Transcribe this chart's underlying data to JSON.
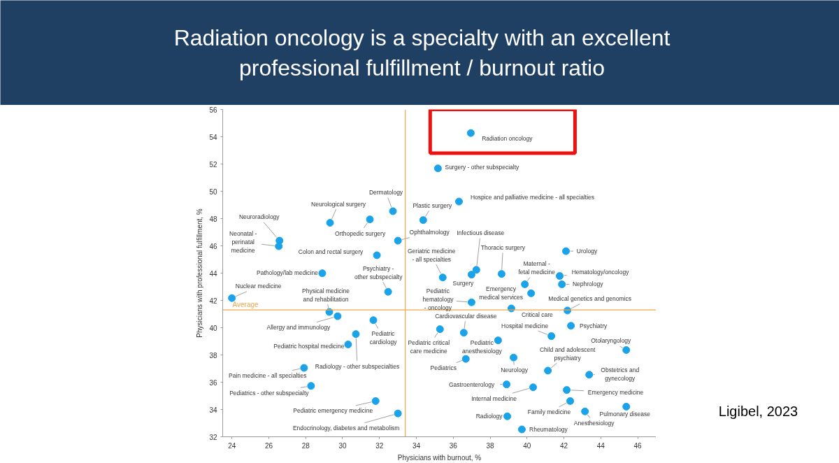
{
  "chart_data": {
    "type": "scatter",
    "title": "Radiation oncology is a specialty with an excellent professional fulfillment / burnout ratio",
    "xlabel": "Physicians with burnout, %",
    "ylabel": "Physicians with professional fulfillment, %",
    "xlim": [
      23.5,
      47
    ],
    "ylim": [
      32,
      56
    ],
    "xticks": [
      24,
      26,
      28,
      30,
      32,
      34,
      36,
      38,
      40,
      42,
      44,
      46
    ],
    "yticks": [
      32,
      34,
      36,
      38,
      40,
      42,
      44,
      46,
      48,
      50,
      52,
      54,
      56
    ],
    "grid": false,
    "marker": "circle",
    "series": [
      {
        "color": "#1aa3e8",
        "x": [
          36.95,
          35.17,
          32.73,
          36.31,
          34.37,
          29.32,
          31.48,
          26.58,
          26.54,
          33.0,
          31.86,
          37.25,
          42.11,
          35.43,
          36.99,
          38.62,
          28.9,
          41.77,
          39.88,
          41.89,
          24.0,
          32.47,
          40.22,
          36.99,
          42.19,
          39.15,
          29.28,
          29.73,
          36.57,
          31.67,
          42.38,
          41.32,
          35.28,
          30.72,
          38.43,
          30.3,
          45.38,
          36.68,
          39.27,
          27.91,
          41.13,
          43.37,
          38.89,
          40.33,
          42.15,
          28.29,
          42.34,
          45.38,
          43.14,
          31.79,
          33.0,
          38.93,
          39.72
        ],
        "values": [
          54.27,
          51.68,
          48.54,
          49.25,
          47.89,
          47.69,
          47.94,
          46.38,
          45.97,
          46.38,
          45.31,
          44.24,
          45.61,
          43.68,
          43.89,
          43.94,
          43.99,
          43.79,
          43.18,
          43.18,
          42.17,
          42.63,
          42.52,
          41.86,
          41.26,
          41.41,
          41.15,
          40.84,
          39.63,
          40.55,
          40.14,
          39.38,
          39.89,
          39.53,
          39.07,
          38.77,
          38.36,
          37.71,
          37.81,
          37.05,
          36.85,
          36.55,
          35.84,
          35.63,
          35.43,
          35.73,
          34.62,
          34.21,
          33.86,
          34.62,
          33.71,
          33.5,
          32.54
        ]
      }
    ],
    "ref_lines": [
      {
        "axis": "x",
        "value": 33.4,
        "color": "#f0a64a"
      },
      {
        "axis": "y",
        "value": 41.3,
        "label": "Average",
        "color": "#f0a64a"
      }
    ],
    "annotations": [
      {
        "text": "Radiation oncology",
        "x": 36.95,
        "y": 54.27
      },
      {
        "text": "Surgery - other subspecialty",
        "x": 35.17,
        "y": 51.68
      },
      {
        "text": "Dermatology",
        "x": 32.73,
        "y": 48.54
      },
      {
        "text": "Hospice and palliative medicine - all specialties",
        "x": 36.31,
        "y": 49.25
      },
      {
        "text": "Plastic surgery",
        "x": 34.37,
        "y": 47.89
      },
      {
        "text": "Neurological surgery",
        "x": 29.32,
        "y": 47.69
      },
      {
        "text": "Orthopedic surgery",
        "x": 31.48,
        "y": 47.94
      },
      {
        "text": "Neuroradiology",
        "x": 26.58,
        "y": 46.38
      },
      {
        "text": "Neonatal - perinatal medicine",
        "x": 26.54,
        "y": 45.97
      },
      {
        "text": "Ophthalmology",
        "x": 33.0,
        "y": 46.38
      },
      {
        "text": "Colon and rectal surgery",
        "x": 31.86,
        "y": 45.31
      },
      {
        "text": "Infectious disease",
        "x": 37.25,
        "y": 44.24
      },
      {
        "text": "Urology",
        "x": 42.11,
        "y": 45.61
      },
      {
        "text": "Geriatric medicine - all specialties",
        "x": 35.43,
        "y": 43.68
      },
      {
        "text": "Surgery",
        "x": 36.99,
        "y": 43.89
      },
      {
        "text": "Thoracic surgery",
        "x": 38.62,
        "y": 43.94
      },
      {
        "text": "Pathology/lab medicine",
        "x": 28.9,
        "y": 43.99
      },
      {
        "text": "Hematology/oncology",
        "x": 41.77,
        "y": 43.79
      },
      {
        "text": "Maternal - fetal medicine",
        "x": 39.88,
        "y": 43.18
      },
      {
        "text": "Nephrology",
        "x": 41.89,
        "y": 43.18
      },
      {
        "text": "Nuclear medicine",
        "x": 24.0,
        "y": 42.17
      },
      {
        "text": "Psychiatry - other subspecialty",
        "x": 32.47,
        "y": 42.63
      },
      {
        "text": "Emergency medical services",
        "x": 40.22,
        "y": 42.52
      },
      {
        "text": "Pediatric hematology - oncology",
        "x": 36.99,
        "y": 41.86
      },
      {
        "text": "Medical genetics and genomics",
        "x": 42.19,
        "y": 41.26
      },
      {
        "text": "Critical care",
        "x": 39.15,
        "y": 41.41
      },
      {
        "text": "Physical medicine and rehabilitation",
        "x": 29.28,
        "y": 41.15
      },
      {
        "text": "Allergy and immunology",
        "x": 29.73,
        "y": 40.84
      },
      {
        "text": "Cardiovascular disease",
        "x": 36.57,
        "y": 39.63
      },
      {
        "text": "Pediatric cardiology",
        "x": 31.67,
        "y": 40.55
      },
      {
        "text": "Psychiatry",
        "x": 42.38,
        "y": 40.14
      },
      {
        "text": "Hospital medicine",
        "x": 41.32,
        "y": 39.38
      },
      {
        "text": "Pediatric critical care medicine",
        "x": 35.28,
        "y": 39.89
      },
      {
        "text": "Radiology - other subspecialties",
        "x": 30.72,
        "y": 39.53
      },
      {
        "text": "Pediatric anesthesiology",
        "x": 38.43,
        "y": 39.07
      },
      {
        "text": "Pediatric hospital medicine",
        "x": 30.3,
        "y": 38.77
      },
      {
        "text": "Otolaryngology",
        "x": 45.38,
        "y": 38.36
      },
      {
        "text": "Pediatrics",
        "x": 36.68,
        "y": 37.71
      },
      {
        "text": "Neurology",
        "x": 39.27,
        "y": 37.81
      },
      {
        "text": "Pain medicine - all specialties",
        "x": 27.91,
        "y": 37.05
      },
      {
        "text": "Child and adolescent psychiatry",
        "x": 41.13,
        "y": 36.85
      },
      {
        "text": "Obstetrics and gynecology",
        "x": 43.37,
        "y": 36.55
      },
      {
        "text": "Gastroenterology",
        "x": 38.89,
        "y": 35.84
      },
      {
        "text": "Internal medicine",
        "x": 40.33,
        "y": 35.63
      },
      {
        "text": "Emergency medicine",
        "x": 42.15,
        "y": 35.43
      },
      {
        "text": "Pediatrics - other subspecialty",
        "x": 28.29,
        "y": 35.73
      },
      {
        "text": "Family medicine",
        "x": 42.34,
        "y": 34.62
      },
      {
        "text": "Pulmonary disease",
        "x": 45.38,
        "y": 34.21
      },
      {
        "text": "Anesthesiology",
        "x": 43.14,
        "y": 33.86
      },
      {
        "text": "Pediatric emergency medicine",
        "x": 31.79,
        "y": 34.62
      },
      {
        "text": "Endocrinology, diabetes and metabolism",
        "x": 33.0,
        "y": 33.71
      },
      {
        "text": "Radiology",
        "x": 38.93,
        "y": 33.5
      },
      {
        "text": "Rheumatology",
        "x": 39.72,
        "y": 32.54
      },
      "Ligibel, 2023"
    ]
  }
}
